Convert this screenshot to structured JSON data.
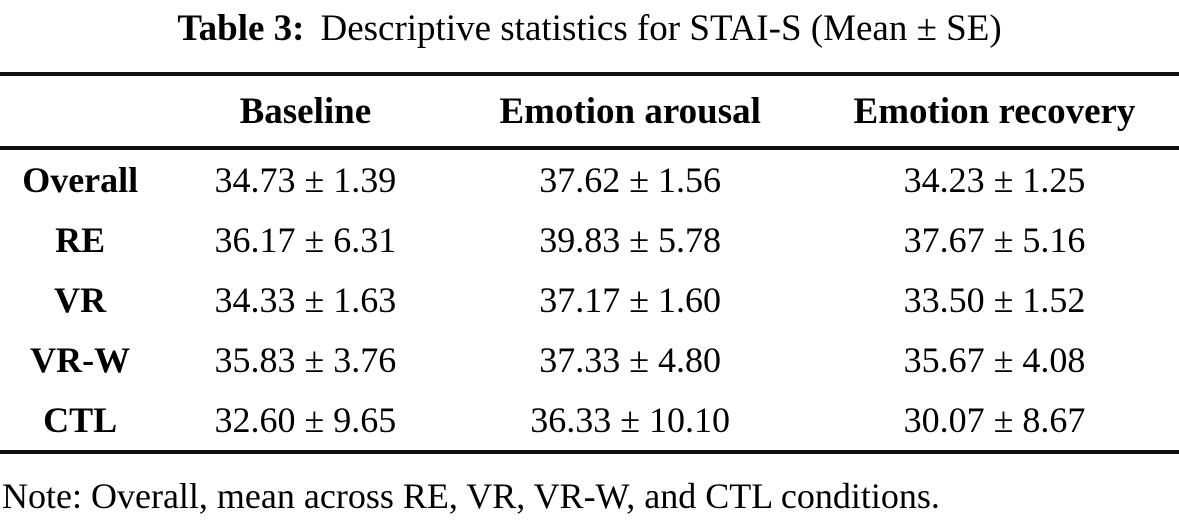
{
  "title": {
    "prefix": "Table 3:",
    "text": "Descriptive statistics for STAI-S (Mean ± SE)"
  },
  "table": {
    "columns": [
      "",
      "Baseline",
      "Emotion arousal",
      "Emotion recovery"
    ],
    "rows": [
      {
        "label": "Overall",
        "baseline": "34.73 ± 1.39",
        "arousal": "37.62 ± 1.56",
        "recovery": "34.23 ± 1.25"
      },
      {
        "label": "RE",
        "baseline": "36.17 ± 6.31",
        "arousal": "39.83 ± 5.78",
        "recovery": "37.67 ± 5.16"
      },
      {
        "label": "VR",
        "baseline": "34.33 ± 1.63",
        "arousal": "37.17 ± 1.60",
        "recovery": "33.50 ± 1.52"
      },
      {
        "label": "VR-W",
        "baseline": "35.83 ± 3.76",
        "arousal": "37.33 ± 4.80",
        "recovery": "35.67 ± 4.08"
      },
      {
        "label": "CTL",
        "baseline": "32.60 ± 9.65",
        "arousal": "36.33 ± 10.10",
        "recovery": "30.07 ± 8.67"
      }
    ]
  },
  "note": {
    "text": "Note: Overall, mean across RE, VR, VR-W, and CTL conditions."
  },
  "colors": {
    "background": "#ffffff",
    "text": "#000000",
    "rule": "#111111"
  }
}
